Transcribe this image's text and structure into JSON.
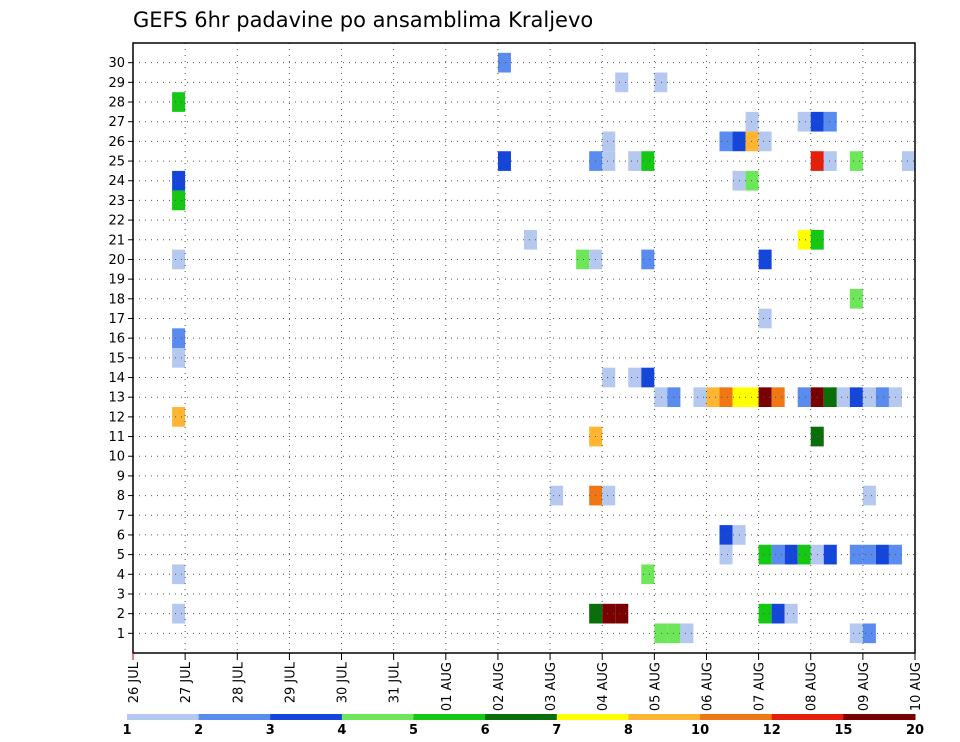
{
  "chart_data": {
    "type": "heatmap",
    "title": "GEFS 6hr padavine po ansamblima Kraljevo",
    "y_ticks": [
      "1",
      "2",
      "3",
      "4",
      "5",
      "6",
      "7",
      "8",
      "9",
      "10",
      "11",
      "12",
      "13",
      "14",
      "15",
      "16",
      "17",
      "18",
      "19",
      "20",
      "21",
      "22",
      "23",
      "24",
      "25",
      "26",
      "27",
      "28",
      "29",
      "30"
    ],
    "x_ticks": [
      "26 JUL",
      "27 JUL",
      "28 JUL",
      "29 JUL",
      "30 JUL",
      "31 JUL",
      "01 AUG",
      "02 AUG",
      "03 AUG",
      "04 AUG",
      "05 AUG",
      "06 AUG",
      "07 AUG",
      "08 AUG",
      "09 AUG",
      "10 AUG"
    ],
    "grid": true,
    "colorbar": {
      "colors": [
        "#b4c8f0",
        "#5a8cf0",
        "#1446dc",
        "#6ee65a",
        "#14c814",
        "#0a6e0a",
        "#ffff00",
        "#ffb432",
        "#f07814",
        "#e61e0a",
        "#780000"
      ],
      "labels": [
        "1",
        "2",
        "3",
        "4",
        "5",
        "6",
        "7",
        "8",
        "10",
        "12",
        "15",
        "20"
      ]
    },
    "cells": [
      {
        "t": 0.75,
        "m": 28,
        "c": 4
      },
      {
        "t": 0.75,
        "m": 24,
        "c": 2
      },
      {
        "t": 0.75,
        "m": 23,
        "c": 4
      },
      {
        "t": 0.75,
        "m": 20,
        "c": 0
      },
      {
        "t": 0.75,
        "m": 16,
        "c": 1
      },
      {
        "t": 0.75,
        "m": 15,
        "c": 0
      },
      {
        "t": 0.75,
        "m": 12,
        "c": 7
      },
      {
        "t": 0.75,
        "m": 4,
        "c": 0
      },
      {
        "t": 0.75,
        "m": 2,
        "c": 0
      },
      {
        "t": 7.0,
        "m": 30,
        "c": 1
      },
      {
        "t": 7.0,
        "m": 25,
        "c": 2
      },
      {
        "t": 7.5,
        "m": 21,
        "c": 0
      },
      {
        "t": 8.0,
        "m": 8,
        "c": 0
      },
      {
        "t": 8.5,
        "m": 20,
        "c": 3
      },
      {
        "t": 8.75,
        "m": 25,
        "c": 1
      },
      {
        "t": 8.75,
        "m": 20,
        "c": 0
      },
      {
        "t": 8.75,
        "m": 11,
        "c": 7
      },
      {
        "t": 8.75,
        "m": 8,
        "c": 8
      },
      {
        "t": 8.75,
        "m": 2,
        "c": 5
      },
      {
        "t": 9.0,
        "m": 26,
        "c": 0
      },
      {
        "t": 9.0,
        "m": 25,
        "c": 0
      },
      {
        "t": 9.0,
        "m": 14,
        "c": 0
      },
      {
        "t": 9.0,
        "m": 8,
        "c": 0
      },
      {
        "t": 9.0,
        "m": 2,
        "c": 10
      },
      {
        "t": 9.25,
        "m": 29,
        "c": 0
      },
      {
        "t": 9.25,
        "m": 2,
        "c": 10
      },
      {
        "t": 9.5,
        "m": 25,
        "c": 0
      },
      {
        "t": 9.5,
        "m": 14,
        "c": 0
      },
      {
        "t": 9.75,
        "m": 25,
        "c": 4
      },
      {
        "t": 9.75,
        "m": 20,
        "c": 1
      },
      {
        "t": 9.75,
        "m": 14,
        "c": 2
      },
      {
        "t": 9.75,
        "m": 4,
        "c": 3
      },
      {
        "t": 10.0,
        "m": 29,
        "c": 0
      },
      {
        "t": 10.0,
        "m": 13,
        "c": 0
      },
      {
        "t": 10.0,
        "m": 1,
        "c": 3
      },
      {
        "t": 10.25,
        "m": 13,
        "c": 1
      },
      {
        "t": 10.25,
        "m": 1,
        "c": 3
      },
      {
        "t": 10.5,
        "m": 1,
        "c": 0
      },
      {
        "t": 10.75,
        "m": 13,
        "c": 0
      },
      {
        "t": 11.0,
        "m": 13,
        "c": 7
      },
      {
        "t": 11.25,
        "m": 26,
        "c": 1
      },
      {
        "t": 11.25,
        "m": 13,
        "c": 8
      },
      {
        "t": 11.25,
        "m": 6,
        "c": 2
      },
      {
        "t": 11.25,
        "m": 5,
        "c": 0
      },
      {
        "t": 11.5,
        "m": 26,
        "c": 2
      },
      {
        "t": 11.5,
        "m": 24,
        "c": 0
      },
      {
        "t": 11.5,
        "m": 13,
        "c": 6
      },
      {
        "t": 11.5,
        "m": 6,
        "c": 0
      },
      {
        "t": 11.75,
        "m": 27,
        "c": 0
      },
      {
        "t": 11.75,
        "m": 26,
        "c": 7
      },
      {
        "t": 11.75,
        "m": 24,
        "c": 3
      },
      {
        "t": 11.75,
        "m": 13,
        "c": 6
      },
      {
        "t": 12.0,
        "m": 26,
        "c": 0
      },
      {
        "t": 12.0,
        "m": 20,
        "c": 2
      },
      {
        "t": 12.0,
        "m": 17,
        "c": 0
      },
      {
        "t": 12.0,
        "m": 13,
        "c": 10
      },
      {
        "t": 12.0,
        "m": 5,
        "c": 4
      },
      {
        "t": 12.0,
        "m": 2,
        "c": 4
      },
      {
        "t": 12.25,
        "m": 13,
        "c": 8
      },
      {
        "t": 12.25,
        "m": 5,
        "c": 1
      },
      {
        "t": 12.25,
        "m": 2,
        "c": 2
      },
      {
        "t": 12.5,
        "m": 5,
        "c": 2
      },
      {
        "t": 12.5,
        "m": 2,
        "c": 0
      },
      {
        "t": 12.75,
        "m": 27,
        "c": 0
      },
      {
        "t": 12.75,
        "m": 21,
        "c": 6
      },
      {
        "t": 12.75,
        "m": 13,
        "c": 1
      },
      {
        "t": 12.75,
        "m": 5,
        "c": 4
      },
      {
        "t": 13.0,
        "m": 27,
        "c": 2
      },
      {
        "t": 13.0,
        "m": 25,
        "c": 9
      },
      {
        "t": 13.0,
        "m": 21,
        "c": 4
      },
      {
        "t": 13.0,
        "m": 13,
        "c": 10
      },
      {
        "t": 13.0,
        "m": 11,
        "c": 5
      },
      {
        "t": 13.0,
        "m": 5,
        "c": 0
      },
      {
        "t": 13.25,
        "m": 27,
        "c": 1
      },
      {
        "t": 13.25,
        "m": 25,
        "c": 0
      },
      {
        "t": 13.25,
        "m": 13,
        "c": 5
      },
      {
        "t": 13.25,
        "m": 5,
        "c": 2
      },
      {
        "t": 13.5,
        "m": 13,
        "c": 0
      },
      {
        "t": 13.75,
        "m": 25,
        "c": 3
      },
      {
        "t": 13.75,
        "m": 18,
        "c": 3
      },
      {
        "t": 13.75,
        "m": 13,
        "c": 2
      },
      {
        "t": 13.75,
        "m": 5,
        "c": 1
      },
      {
        "t": 13.75,
        "m": 1,
        "c": 0
      },
      {
        "t": 14.0,
        "m": 13,
        "c": 0
      },
      {
        "t": 14.0,
        "m": 8,
        "c": 0
      },
      {
        "t": 14.0,
        "m": 5,
        "c": 1
      },
      {
        "t": 14.0,
        "m": 1,
        "c": 1
      },
      {
        "t": 14.25,
        "m": 13,
        "c": 1
      },
      {
        "t": 14.25,
        "m": 5,
        "c": 2
      },
      {
        "t": 14.5,
        "m": 13,
        "c": 0
      },
      {
        "t": 14.5,
        "m": 5,
        "c": 1
      },
      {
        "t": 14.75,
        "m": 25,
        "c": 0
      },
      {
        "t": 15.0,
        "m": 13,
        "c": 1
      },
      {
        "t": 15.0,
        "m": 2,
        "c": 2
      }
    ]
  }
}
